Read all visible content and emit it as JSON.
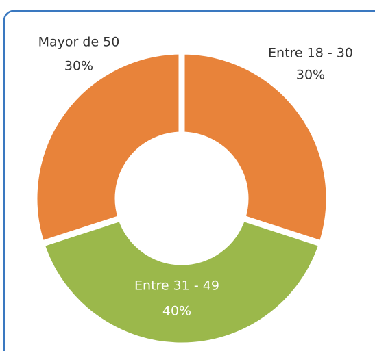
{
  "chart_data": {
    "type": "donut",
    "categories": [
      "Entre 18 - 30",
      "Entre 31 - 49",
      "Mayor de 50"
    ],
    "values": [
      30,
      40,
      30
    ],
    "value_labels": [
      "30%",
      "40%",
      "30%"
    ],
    "colors": [
      "#E8833A",
      "#9BB84B",
      "#E8833A"
    ]
  }
}
